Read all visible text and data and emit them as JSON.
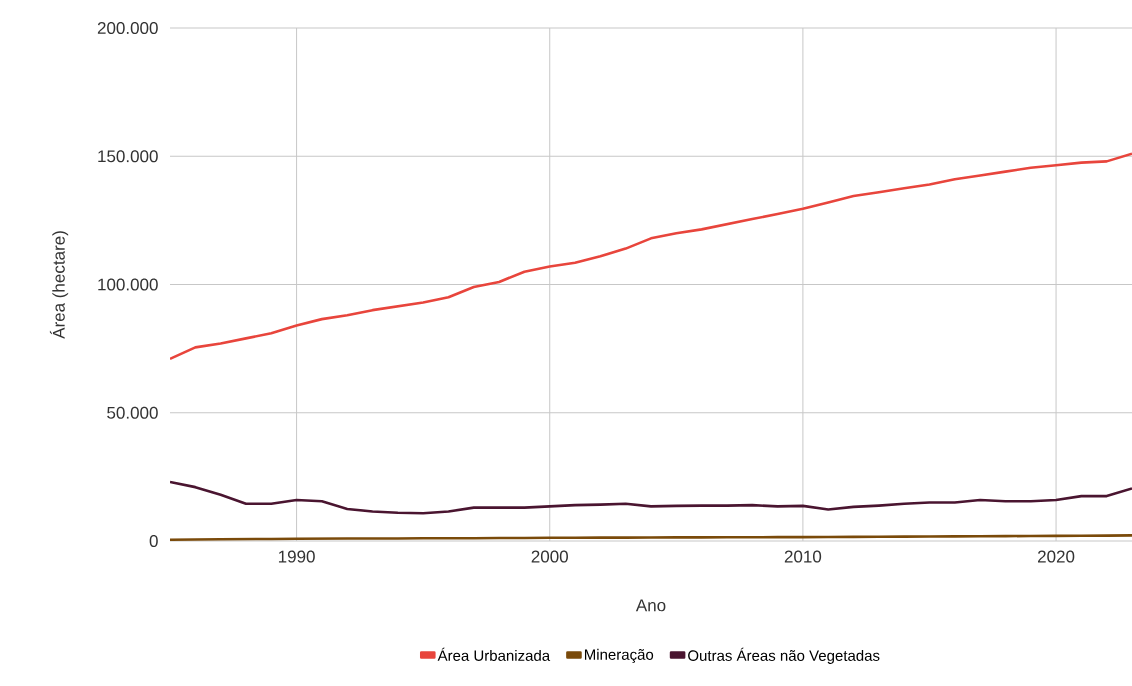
{
  "chart_data": {
    "type": "line",
    "xlabel": "Ano",
    "ylabel": "Área (hectare)",
    "x": [
      1985,
      1986,
      1987,
      1988,
      1989,
      1990,
      1991,
      1992,
      1993,
      1994,
      1995,
      1996,
      1997,
      1998,
      1999,
      2000,
      2001,
      2002,
      2003,
      2004,
      2005,
      2006,
      2007,
      2008,
      2009,
      2010,
      2011,
      2012,
      2013,
      2014,
      2015,
      2016,
      2017,
      2018,
      2019,
      2020,
      2021,
      2022,
      2023
    ],
    "series": [
      {
        "name": "Área Urbanizada",
        "color": "#e8453c",
        "values": [
          71000,
          75500,
          77000,
          79000,
          81000,
          84000,
          86500,
          88000,
          90000,
          91500,
          93000,
          95000,
          99000,
          101000,
          105000,
          107000,
          108500,
          111000,
          114000,
          118000,
          120000,
          121500,
          123500,
          125500,
          127500,
          129500,
          132000,
          134500,
          136000,
          137500,
          139000,
          141000,
          142500,
          144000,
          145500,
          146500,
          147500,
          148000,
          151000
        ]
      },
      {
        "name": "Mineração",
        "color": "#7a4a0a",
        "values": [
          500,
          600,
          700,
          750,
          800,
          850,
          900,
          950,
          1000,
          1000,
          1050,
          1100,
          1100,
          1150,
          1200,
          1250,
          1250,
          1300,
          1300,
          1350,
          1400,
          1400,
          1450,
          1450,
          1500,
          1500,
          1550,
          1600,
          1650,
          1700,
          1750,
          1800,
          1850,
          1900,
          1950,
          2000,
          2050,
          2100,
          2200
        ]
      },
      {
        "name": "Outras Áreas não Vegetadas",
        "color": "#4a1530",
        "values": [
          23000,
          21000,
          18000,
          14500,
          14500,
          16000,
          15500,
          12500,
          11500,
          11000,
          10800,
          11500,
          13000,
          13000,
          13000,
          13500,
          14000,
          14200,
          14500,
          13500,
          13700,
          13800,
          13800,
          14000,
          13500,
          13700,
          12300,
          13300,
          13800,
          14500,
          15000,
          15000,
          16000,
          15500,
          15500,
          16000,
          17500,
          17500,
          20500
        ]
      }
    ],
    "xlim": [
      1985,
      2023
    ],
    "ylim": [
      0,
      200000
    ],
    "xticks": [
      1990,
      2000,
      2010,
      2020
    ],
    "yticks": [
      {
        "value": 0,
        "label": "0"
      },
      {
        "value": 50000,
        "label": "50.000"
      },
      {
        "value": 100000,
        "label": "100.000"
      },
      {
        "value": 150000,
        "label": "150.000"
      },
      {
        "value": 200000,
        "label": "200.000"
      }
    ],
    "grid": true,
    "legend": "bottom",
    "line_style": "solid"
  }
}
